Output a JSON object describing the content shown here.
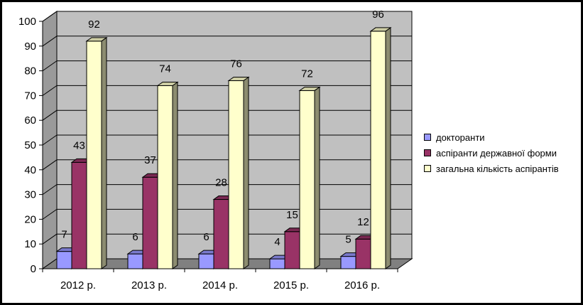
{
  "chart_data": {
    "type": "bar",
    "categories": [
      "2012 р.",
      "2013 р.",
      "2014 р.",
      "2015 р.",
      "2016 р."
    ],
    "series": [
      {
        "name": "докторанти",
        "values": [
          7,
          6,
          6,
          4,
          5
        ],
        "color": "#9999ff"
      },
      {
        "name": "аспіранти державної форми",
        "values": [
          43,
          37,
          28,
          15,
          12
        ],
        "color": "#993366"
      },
      {
        "name": "загальна кількість аспірантів",
        "values": [
          92,
          74,
          76,
          72,
          96
        ],
        "color": "#ffffcc"
      }
    ],
    "ylim": [
      0,
      100
    ],
    "yticks": [
      0,
      10,
      20,
      30,
      40,
      50,
      60,
      70,
      80,
      90,
      100
    ],
    "grid": true,
    "legend": "right",
    "three_d": true,
    "wall_color": "#c0c0c0",
    "floor_color": "#808080"
  }
}
